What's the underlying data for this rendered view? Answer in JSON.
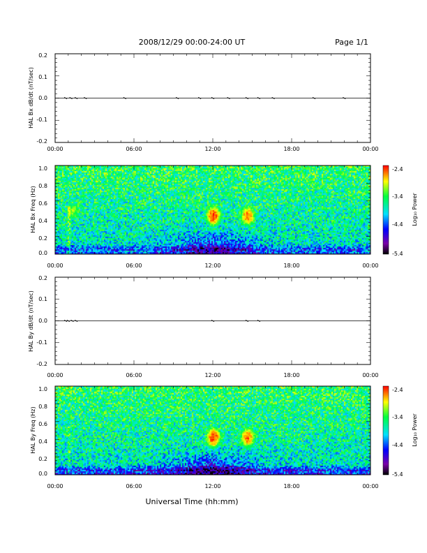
{
  "header": {
    "title": "2008/12/29  00:00-24:00 UT",
    "page": "Page 1/1"
  },
  "xlabel": "Universal Time (hh:mm)",
  "chart_data": [
    {
      "type": "line",
      "ylabel": "HAL Bx dB/dt (nT/sec)",
      "xlim": [
        0,
        24
      ],
      "ylim": [
        -0.2,
        0.2
      ],
      "x_ticks": [
        "00:00",
        "06:00",
        "12:00",
        "18:00",
        "00:00"
      ],
      "y_ticks": [
        "0.2",
        "0.1",
        "0.0",
        "-0.1",
        "-0.2"
      ],
      "series": [
        {
          "x": [
            0,
            24
          ],
          "y": [
            0,
            0
          ]
        }
      ],
      "bursts_hours": [
        0.8,
        1.2,
        1.6,
        2.3,
        5.3,
        9.3,
        11.0,
        12.0,
        13.2,
        14.6,
        15.5,
        16.6,
        19.7,
        22.0
      ]
    },
    {
      "type": "heatmap",
      "ylabel": "HAL Bx Freq (Hz)",
      "xlim": [
        0,
        24
      ],
      "ylim": [
        0,
        1.0
      ],
      "x_ticks": [
        "00:00",
        "06:00",
        "12:00",
        "18:00",
        "00:00"
      ],
      "y_ticks": [
        "1.0",
        "0.8",
        "0.6",
        "0.4",
        "0.2",
        "0.0"
      ],
      "colorbar": {
        "label": "Log₁₀ Power",
        "ticks": [
          "-2.4",
          "-3.4",
          "-4.4",
          "-5.4"
        ],
        "range": [
          -5.4,
          -2.4
        ]
      },
      "hotspots": [
        {
          "t": 12.0,
          "f": 0.44,
          "power": -2.5
        },
        {
          "t": 14.6,
          "f": 0.44,
          "power": -2.6
        },
        {
          "t": 1.3,
          "f": 0.5,
          "power": -3.2
        }
      ]
    },
    {
      "type": "line",
      "ylabel": "HAL By dB/dt (nT/sec)",
      "xlim": [
        0,
        24
      ],
      "ylim": [
        -0.2,
        0.2
      ],
      "x_ticks": [
        "00:00",
        "06:00",
        "12:00",
        "18:00",
        "00:00"
      ],
      "y_ticks": [
        "0.2",
        "0.1",
        "0.0",
        "-0.1",
        "-0.2"
      ],
      "series": [
        {
          "x": [
            0,
            24
          ],
          "y": [
            0,
            0
          ]
        }
      ],
      "bursts_hours": [
        0.8,
        1.0,
        1.3,
        1.6,
        12.0,
        14.6,
        15.5
      ]
    },
    {
      "type": "heatmap",
      "ylabel": "HAL By Freq (Hz)",
      "xlim": [
        0,
        24
      ],
      "ylim": [
        0,
        1.0
      ],
      "x_ticks": [
        "00:00",
        "06:00",
        "12:00",
        "18:00",
        "00:00"
      ],
      "y_ticks": [
        "1.0",
        "0.8",
        "0.6",
        "0.4",
        "0.2",
        "0.0"
      ],
      "colorbar": {
        "label": "Log₁₀ Power",
        "ticks": [
          "-2.4",
          "-3.4",
          "-4.4",
          "-5.4"
        ],
        "range": [
          -5.4,
          -2.4
        ]
      },
      "hotspots": [
        {
          "t": 12.0,
          "f": 0.43,
          "power": -2.5
        },
        {
          "t": 14.6,
          "f": 0.43,
          "power": -2.6
        }
      ]
    }
  ]
}
